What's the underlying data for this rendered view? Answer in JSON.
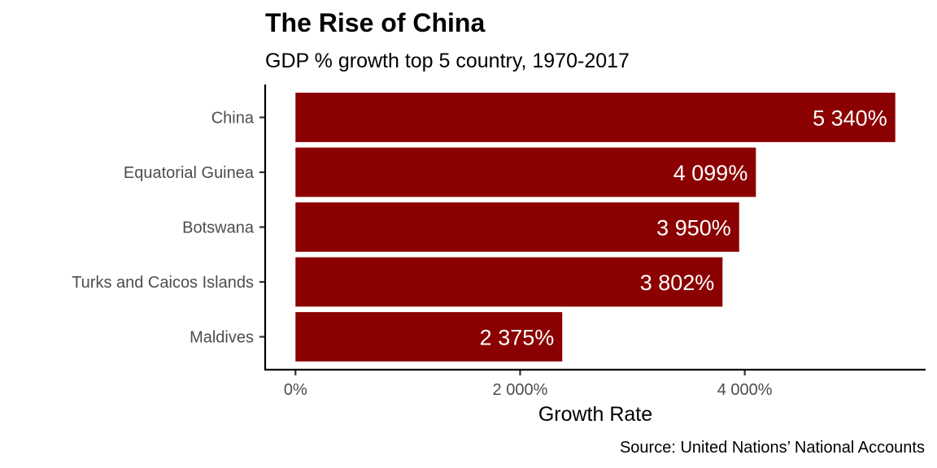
{
  "chart_data": {
    "type": "bar",
    "orientation": "horizontal",
    "title": "The Rise of China",
    "subtitle": "GDP % growth top 5 country, 1970-2017",
    "caption": "Source: United Nations’ National Accounts",
    "xlabel": "Growth Rate",
    "ylabel": "",
    "categories": [
      "China",
      "Equatorial Guinea",
      "Botswana",
      "Turks and Caicos Islands",
      "Maldives"
    ],
    "values": [
      5340,
      4099,
      3950,
      3802,
      2375
    ],
    "value_labels": [
      "5 340%",
      "4 099%",
      "3 950%",
      "3 802%",
      "2 375%"
    ],
    "xlim": [
      -270,
      5610
    ],
    "xticks": [
      0,
      2000,
      4000
    ],
    "xtick_labels": [
      "0%",
      "2 000%",
      "4 000%"
    ],
    "grid": false,
    "legend": "none",
    "bar_color": "#8B0000"
  }
}
